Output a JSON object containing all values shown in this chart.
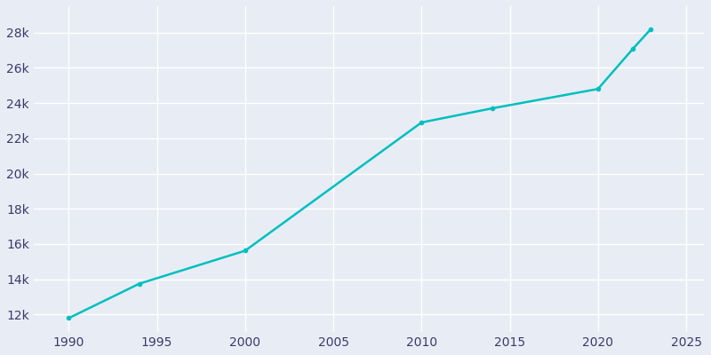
{
  "years": [
    1990,
    1994,
    2000,
    2010,
    2014,
    2020,
    2022,
    2023
  ],
  "population": [
    11794,
    13748,
    15620,
    22900,
    23700,
    24800,
    27100,
    28200
  ],
  "line_color": "#00BFBF",
  "bg_color": "#E8EDF5",
  "grid_color": "#FFFFFF",
  "text_color": "#3A3A6A",
  "xlim": [
    1988,
    2026
  ],
  "ylim": [
    11000,
    29500
  ],
  "xticks": [
    1990,
    1995,
    2000,
    2005,
    2010,
    2015,
    2020,
    2025
  ],
  "ytick_values": [
    12000,
    14000,
    16000,
    18000,
    20000,
    22000,
    24000,
    26000,
    28000
  ],
  "ytick_labels": [
    "12k",
    "14k",
    "16k",
    "18k",
    "20k",
    "22k",
    "24k",
    "26k",
    "28k"
  ]
}
